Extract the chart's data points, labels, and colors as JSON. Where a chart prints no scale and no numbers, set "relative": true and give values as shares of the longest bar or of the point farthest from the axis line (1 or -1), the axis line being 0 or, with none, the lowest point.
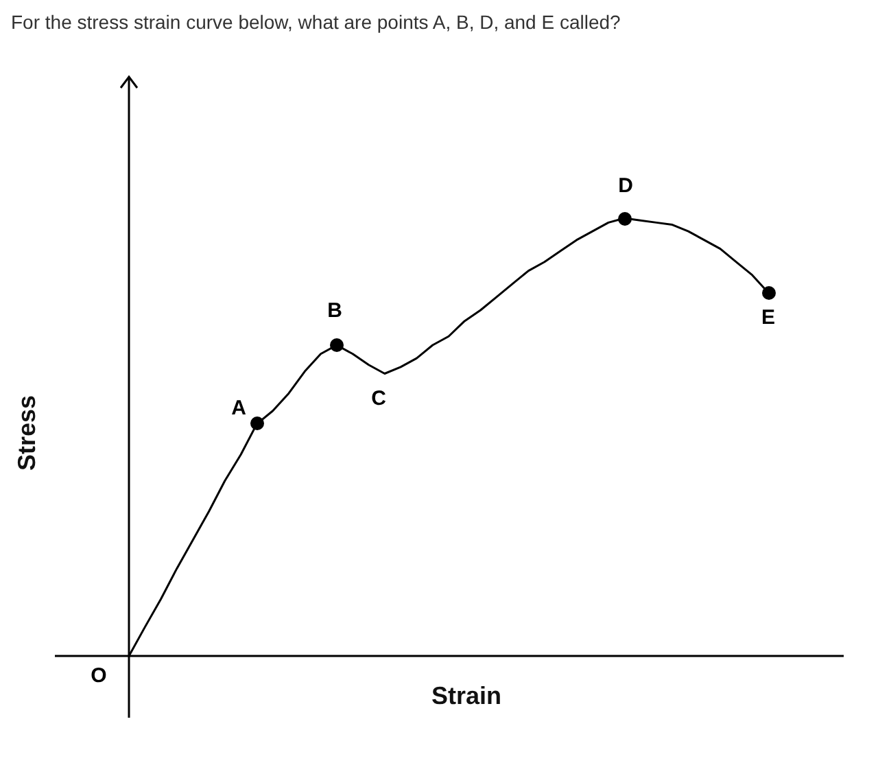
{
  "chart_data": {
    "type": "line",
    "title": "For the stress strain curve below, what are points A, B, D, and E called?",
    "xlabel": "Strain",
    "ylabel": "Stress",
    "relative": true,
    "legend": false,
    "categories": [
      null,
      null,
      null,
      null,
      null,
      null,
      null,
      null,
      null,
      null,
      null,
      null,
      null,
      null,
      null,
      null,
      null,
      null,
      null,
      null,
      null,
      null,
      null,
      null,
      null,
      null,
      null,
      null,
      null,
      null,
      null,
      null,
      null,
      null,
      null,
      null,
      null,
      null,
      null,
      null,
      null
    ],
    "series": [
      {
        "color": "#000000",
        "marker": "none",
        "values": [
          0,
          0.066,
          0.13,
          0.2,
          0.265,
          0.33,
          0.4,
          0.46,
          0.53,
          0.56,
          0.6,
          0.65,
          0.69,
          0.71,
          0.69,
          0.665,
          0.645,
          0.66,
          0.68,
          0.71,
          0.73,
          0.765,
          0.79,
          0.82,
          0.85,
          0.88,
          0.9,
          0.925,
          0.95,
          0.97,
          0.99,
          1,
          0.995,
          0.99,
          0.985,
          0.97,
          0.95,
          0.93,
          0.9,
          0.87,
          0.83
        ]
      }
    ],
    "annotations": [
      "O",
      "A",
      "B",
      "C",
      "D",
      "E"
    ]
  }
}
